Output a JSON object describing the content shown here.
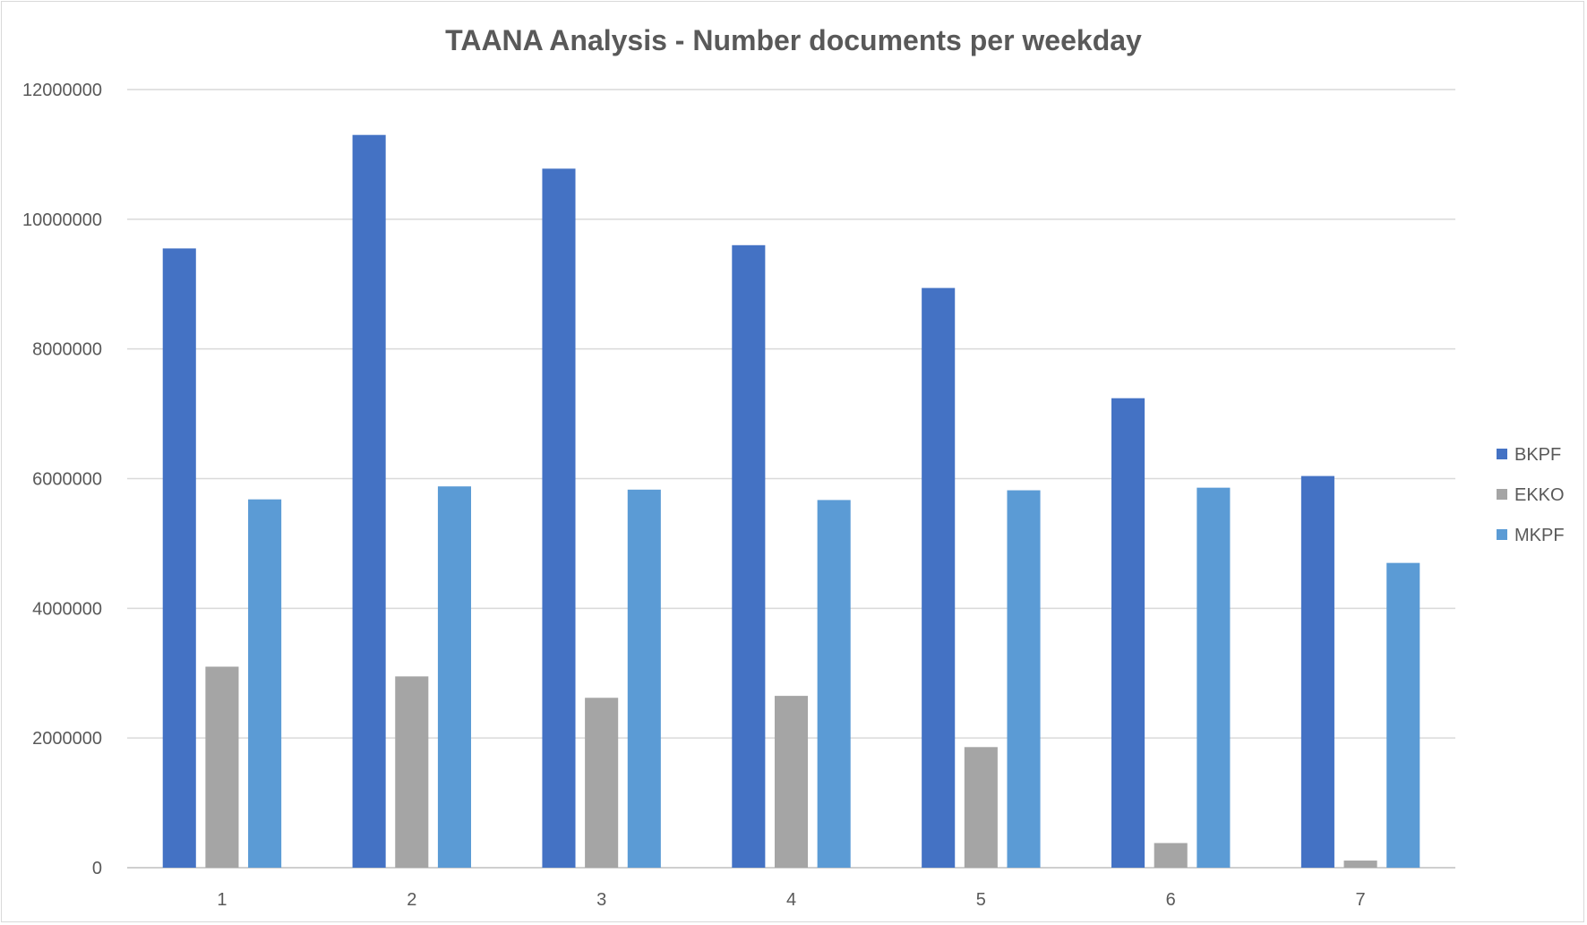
{
  "chart_data": {
    "type": "bar",
    "title": "TAANA Analysis - Number documents per weekday",
    "xlabel": "",
    "ylabel": "",
    "categories": [
      "1",
      "2",
      "3",
      "4",
      "5",
      "6",
      "7"
    ],
    "ylim": [
      0,
      12000000
    ],
    "yticks": [
      0,
      2000000,
      4000000,
      6000000,
      8000000,
      10000000,
      12000000
    ],
    "ytick_labels": [
      "0",
      "2000000",
      "4000000",
      "6000000",
      "8000000",
      "10000000",
      "12000000"
    ],
    "grid": true,
    "legend_position": "right",
    "series": [
      {
        "name": "BKPF",
        "color": "#4472c4",
        "values": [
          9550000,
          11300000,
          10780000,
          9600000,
          8940000,
          7240000,
          6040000
        ]
      },
      {
        "name": "EKKO",
        "color": "#a5a5a5",
        "values": [
          3100000,
          2950000,
          2620000,
          2650000,
          1860000,
          380000,
          110000
        ]
      },
      {
        "name": "MKPF",
        "color": "#5b9bd5",
        "values": [
          5680000,
          5880000,
          5830000,
          5670000,
          5820000,
          5860000,
          4700000
        ]
      }
    ]
  }
}
